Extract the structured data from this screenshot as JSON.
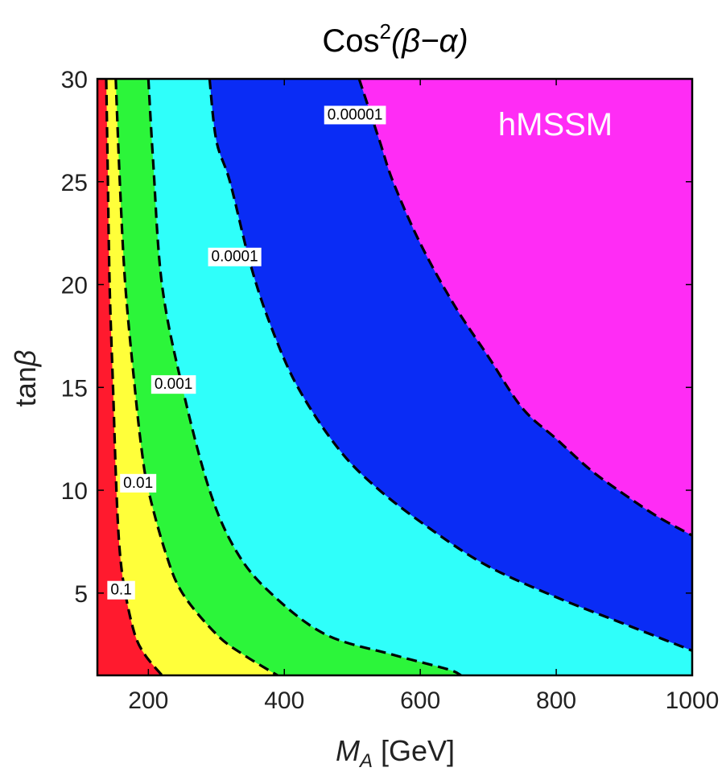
{
  "chart_data": {
    "type": "contour",
    "title": {
      "prefix": "Cos",
      "superscript": "2",
      "argument": "(β−α)"
    },
    "xlabel": {
      "symbol": "M",
      "subscript": "A",
      "unit": " [GeV]"
    },
    "ylabel": {
      "prefix": "tan",
      "symbol": "β"
    },
    "xlim": [
      125,
      1000
    ],
    "ylim": [
      1,
      30
    ],
    "x_ticks": [
      {
        "value": 200,
        "label": "200"
      },
      {
        "value": 400,
        "label": "400"
      },
      {
        "value": 600,
        "label": "600"
      },
      {
        "value": 800,
        "label": "800"
      },
      {
        "value": 1000,
        "label": "1000"
      }
    ],
    "y_ticks": [
      {
        "value": 5,
        "label": "5"
      },
      {
        "value": 10,
        "label": "10"
      },
      {
        "value": 15,
        "label": "15"
      },
      {
        "value": 20,
        "label": "20"
      },
      {
        "value": 25,
        "label": "25"
      },
      {
        "value": 30,
        "label": "30"
      }
    ],
    "region_label": "hMSSM",
    "regions": [
      {
        "name": "region-above-0.1",
        "color": "#ff1a2e"
      },
      {
        "name": "region-0.01-0.1",
        "color": "#ffff3a"
      },
      {
        "name": "region-0.001-0.01",
        "color": "#2cf53a"
      },
      {
        "name": "region-0.0001-0.001",
        "color": "#2ffffa"
      },
      {
        "name": "region-0.00001-0.0001",
        "color": "#0a2cf5"
      },
      {
        "name": "region-below-0.00001",
        "color": "#ff2cf5"
      }
    ],
    "contours": [
      {
        "level": "0.1",
        "label": "0.1",
        "label_at": {
          "x": 160,
          "y": 5.2
        },
        "points": [
          [
            138,
            30
          ],
          [
            140,
            26
          ],
          [
            143,
            20
          ],
          [
            148,
            15
          ],
          [
            153,
            10
          ],
          [
            158,
            7
          ],
          [
            166,
            5
          ],
          [
            180,
            3
          ],
          [
            195,
            2
          ],
          [
            220,
            1
          ]
        ]
      },
      {
        "level": "0.01",
        "label": "0.01",
        "label_at": {
          "x": 185,
          "y": 10.4
        },
        "points": [
          [
            152,
            30
          ],
          [
            158,
            25
          ],
          [
            166,
            20
          ],
          [
            180,
            15
          ],
          [
            190,
            12
          ],
          [
            200,
            10
          ],
          [
            225,
            7
          ],
          [
            250,
            5
          ],
          [
            300,
            3
          ],
          [
            340,
            2
          ],
          [
            390,
            1
          ]
        ]
      },
      {
        "level": "0.001",
        "label": "0.001",
        "label_at": {
          "x": 237,
          "y": 15.2
        },
        "points": [
          [
            200,
            30
          ],
          [
            207,
            26
          ],
          [
            220,
            20
          ],
          [
            250,
            15
          ],
          [
            290,
            10
          ],
          [
            330,
            7
          ],
          [
            380,
            5
          ],
          [
            460,
            3
          ],
          [
            560,
            2
          ],
          [
            640,
            1.3
          ],
          [
            660,
            1
          ]
        ]
      },
      {
        "level": "0.0001",
        "label": "0.0001",
        "label_at": {
          "x": 327,
          "y": 21.4
        },
        "points": [
          [
            290,
            30
          ],
          [
            300,
            27
          ],
          [
            320,
            25
          ],
          [
            350,
            21
          ],
          [
            380,
            18
          ],
          [
            420,
            15
          ],
          [
            480,
            12
          ],
          [
            540,
            10
          ],
          [
            620,
            8
          ],
          [
            700,
            6.3
          ],
          [
            800,
            4.8
          ],
          [
            900,
            3.5
          ],
          [
            1000,
            2.2
          ]
        ]
      },
      {
        "level": "0.00001",
        "label": "0.00001",
        "label_at": {
          "x": 504,
          "y": 28.3
        },
        "points": [
          [
            510,
            30
          ],
          [
            540,
            27
          ],
          [
            560,
            25
          ],
          [
            600,
            22
          ],
          [
            650,
            19
          ],
          [
            700,
            16.5
          ],
          [
            750,
            14
          ],
          [
            800,
            12.5
          ],
          [
            850,
            11
          ],
          [
            900,
            9.8
          ],
          [
            950,
            8.7
          ],
          [
            1000,
            7.8
          ]
        ]
      }
    ]
  }
}
